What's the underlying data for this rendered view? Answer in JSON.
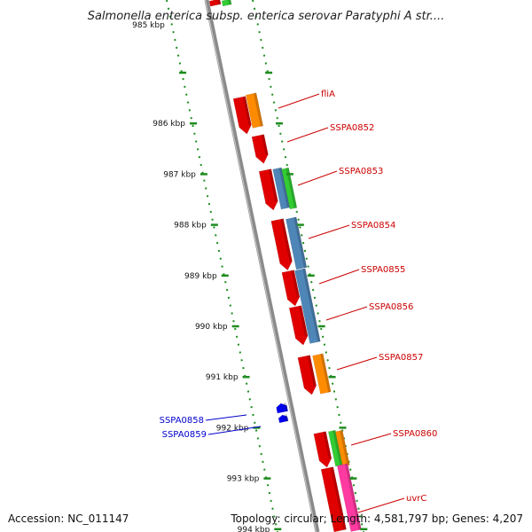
{
  "title": "Salmonella enterica subsp. enterica serovar Paratyphi A str....",
  "footer": {
    "accession": "Accession: NC_011147",
    "topology": "Topology: circular; Length: 4,581,797 bp; Genes: 4,207"
  },
  "colors": {
    "backbone": "#8a8a8a",
    "ticks": "#1e8c1e",
    "forward_label": "#cc0000",
    "reverse_label": "#0000cc",
    "gene_red": "#e00000",
    "gene_orange": "#ff8c00",
    "gene_blue": "#4f86b8",
    "gene_green": "#33cc33",
    "gene_pink": "#ff3aa0",
    "gene_navy": "#0000ee"
  },
  "ticks": [
    "985 kbp",
    "986 kbp",
    "987 kbp",
    "988 kbp",
    "989 kbp",
    "990 kbp",
    "991 kbp",
    "992 kbp",
    "993 kbp",
    "994 kbp"
  ],
  "forward_labels": [
    "fliA",
    "SSPA0852",
    "SSPA0853",
    "SSPA0854",
    "SSPA0855",
    "SSPA0856",
    "SSPA0857",
    "SSPA0860",
    "uvrC"
  ],
  "reverse_labels": [
    "SSPA0858",
    "SSPA0859"
  ]
}
